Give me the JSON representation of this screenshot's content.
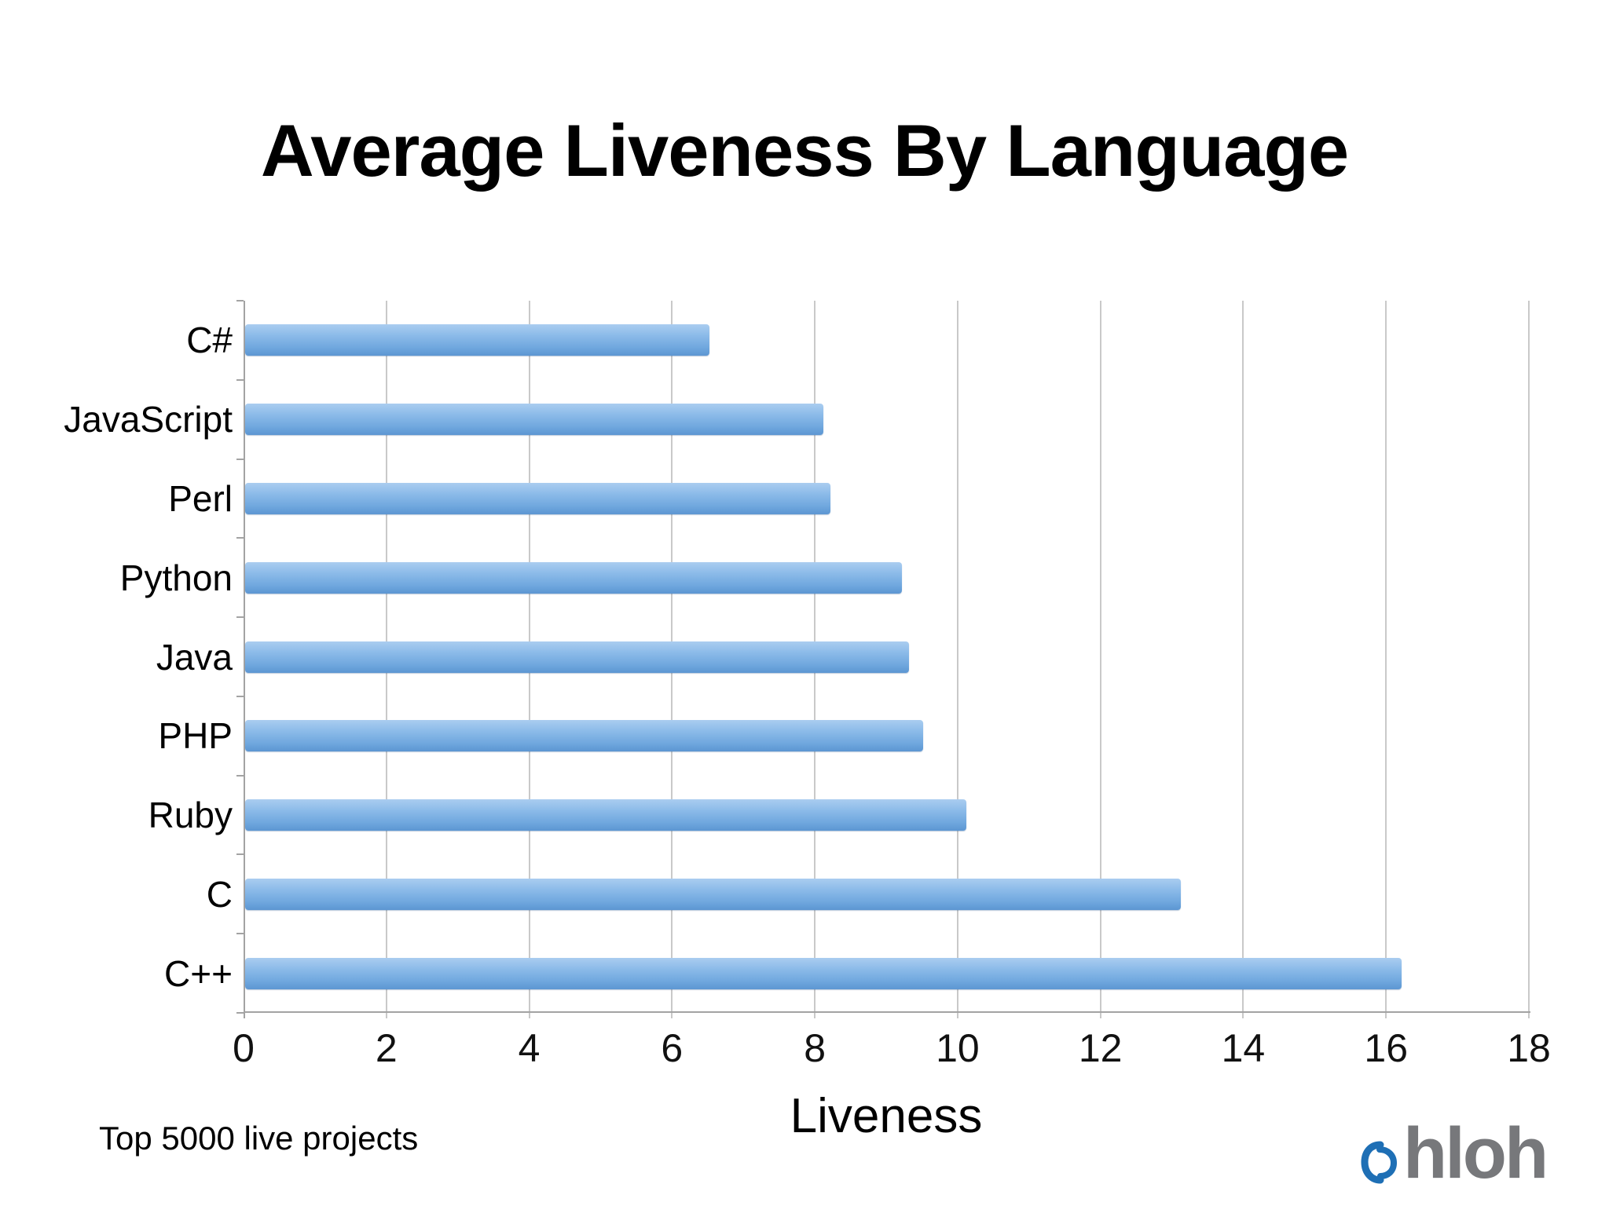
{
  "title": "Average Liveness By Language",
  "chart_data": {
    "type": "bar",
    "orientation": "horizontal",
    "title": "Average Liveness By Language",
    "categories": [
      "C#",
      "JavaScript",
      "Perl",
      "Python",
      "Java",
      "PHP",
      "Ruby",
      "C",
      "C++"
    ],
    "values": [
      6.5,
      8.1,
      8.2,
      9.2,
      9.3,
      9.5,
      10.1,
      13.1,
      16.2
    ],
    "xlabel": "Liveness",
    "ylabel": "",
    "xlim": [
      0,
      18
    ],
    "xticks": [
      0,
      2,
      4,
      6,
      8,
      10,
      12,
      14,
      16,
      18
    ],
    "grid": "vertical",
    "legend": "none",
    "bar_color_top": "#aacdf0",
    "bar_color_bottom": "#5c96d2",
    "gridline_color": "#c9c9c9",
    "axis_color": "#a3a3a3"
  },
  "footer": {
    "note": "Top 5000 live projects",
    "logo": {
      "icon": "ohloh-swirl-o",
      "text": "hloh",
      "blue": "#1e6fb5",
      "gray": "#77787b"
    }
  }
}
